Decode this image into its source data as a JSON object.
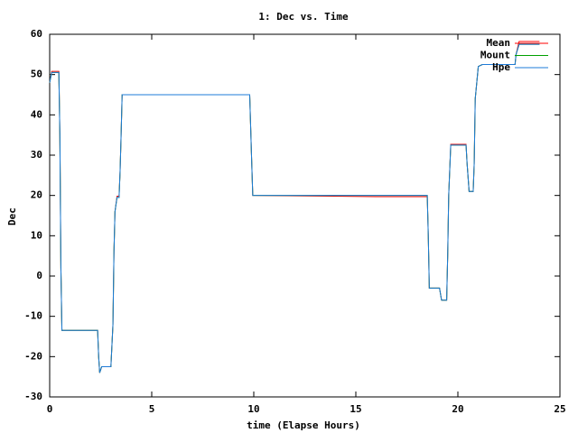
{
  "chart_data": {
    "type": "line",
    "title": "1: Dec vs. Time",
    "x_label": "time (Elapse Hours)",
    "y_label": "Dec",
    "x": [
      0,
      0.1,
      0.45,
      0.5,
      0.55,
      0.6,
      2.35,
      2.4,
      2.45,
      2.55,
      3.0,
      3.1,
      3.15,
      3.2,
      3.3,
      3.4,
      3.45,
      3.5,
      3.55,
      9.8,
      9.9,
      9.95,
      16,
      18.5,
      18.55,
      18.6,
      19.1,
      19.2,
      19.45,
      19.5,
      19.55,
      19.65,
      20.4,
      20.45,
      20.55,
      20.75,
      20.8,
      20.85,
      21.0,
      21.2,
      22.8,
      22.85,
      23.0,
      24.0
    ],
    "series": [
      {
        "name": "Mean",
        "color": "#ff0000",
        "values": [
          48,
          50.8,
          50.8,
          35,
          2,
          -13.5,
          -13.5,
          -20,
          -24,
          -22.5,
          -22.5,
          -12,
          6,
          16,
          19.8,
          19.8,
          26,
          35,
          45,
          45,
          28,
          20,
          19.7,
          19.7,
          10,
          -3,
          -3,
          -6,
          -6,
          5,
          20,
          32.7,
          32.7,
          28,
          21,
          21,
          28,
          44,
          52,
          52.5,
          52.5,
          55,
          58.2,
          58.2
        ]
      },
      {
        "name": "Mount",
        "color": "#00a000",
        "values": [
          48,
          50.5,
          50.5,
          35,
          2,
          -13.5,
          -13.5,
          -20,
          -24,
          -22.5,
          -22.5,
          -12,
          6,
          16,
          19.5,
          19.5,
          26,
          35,
          45,
          45,
          28,
          20,
          20,
          20,
          10,
          -3,
          -3,
          -6,
          -6,
          5,
          20,
          32.5,
          32.5,
          28,
          21,
          21,
          28,
          44,
          52,
          52.5,
          52.5,
          55,
          57.5,
          57.5
        ]
      },
      {
        "name": "Hpe",
        "color": "#1e7bd8",
        "values": [
          48,
          50.5,
          50.5,
          35,
          2,
          -13.5,
          -13.5,
          -20,
          -24,
          -22.5,
          -22.5,
          -12,
          6,
          16,
          19.5,
          19.5,
          26,
          35,
          45,
          45,
          28,
          20,
          20,
          20,
          10,
          -3,
          -3,
          -6,
          -6,
          5,
          20,
          32.5,
          32.5,
          28,
          21,
          21,
          28,
          44,
          52,
          52.5,
          52.5,
          55,
          57.5,
          57.5
        ]
      }
    ],
    "xlim": [
      0,
      25
    ],
    "xticks": [
      0,
      5,
      10,
      15,
      20,
      25
    ],
    "ylim": [
      -30,
      60
    ],
    "yticks": [
      -30,
      -20,
      -10,
      0,
      10,
      20,
      30,
      40,
      50,
      60
    ],
    "legend": "top right"
  }
}
